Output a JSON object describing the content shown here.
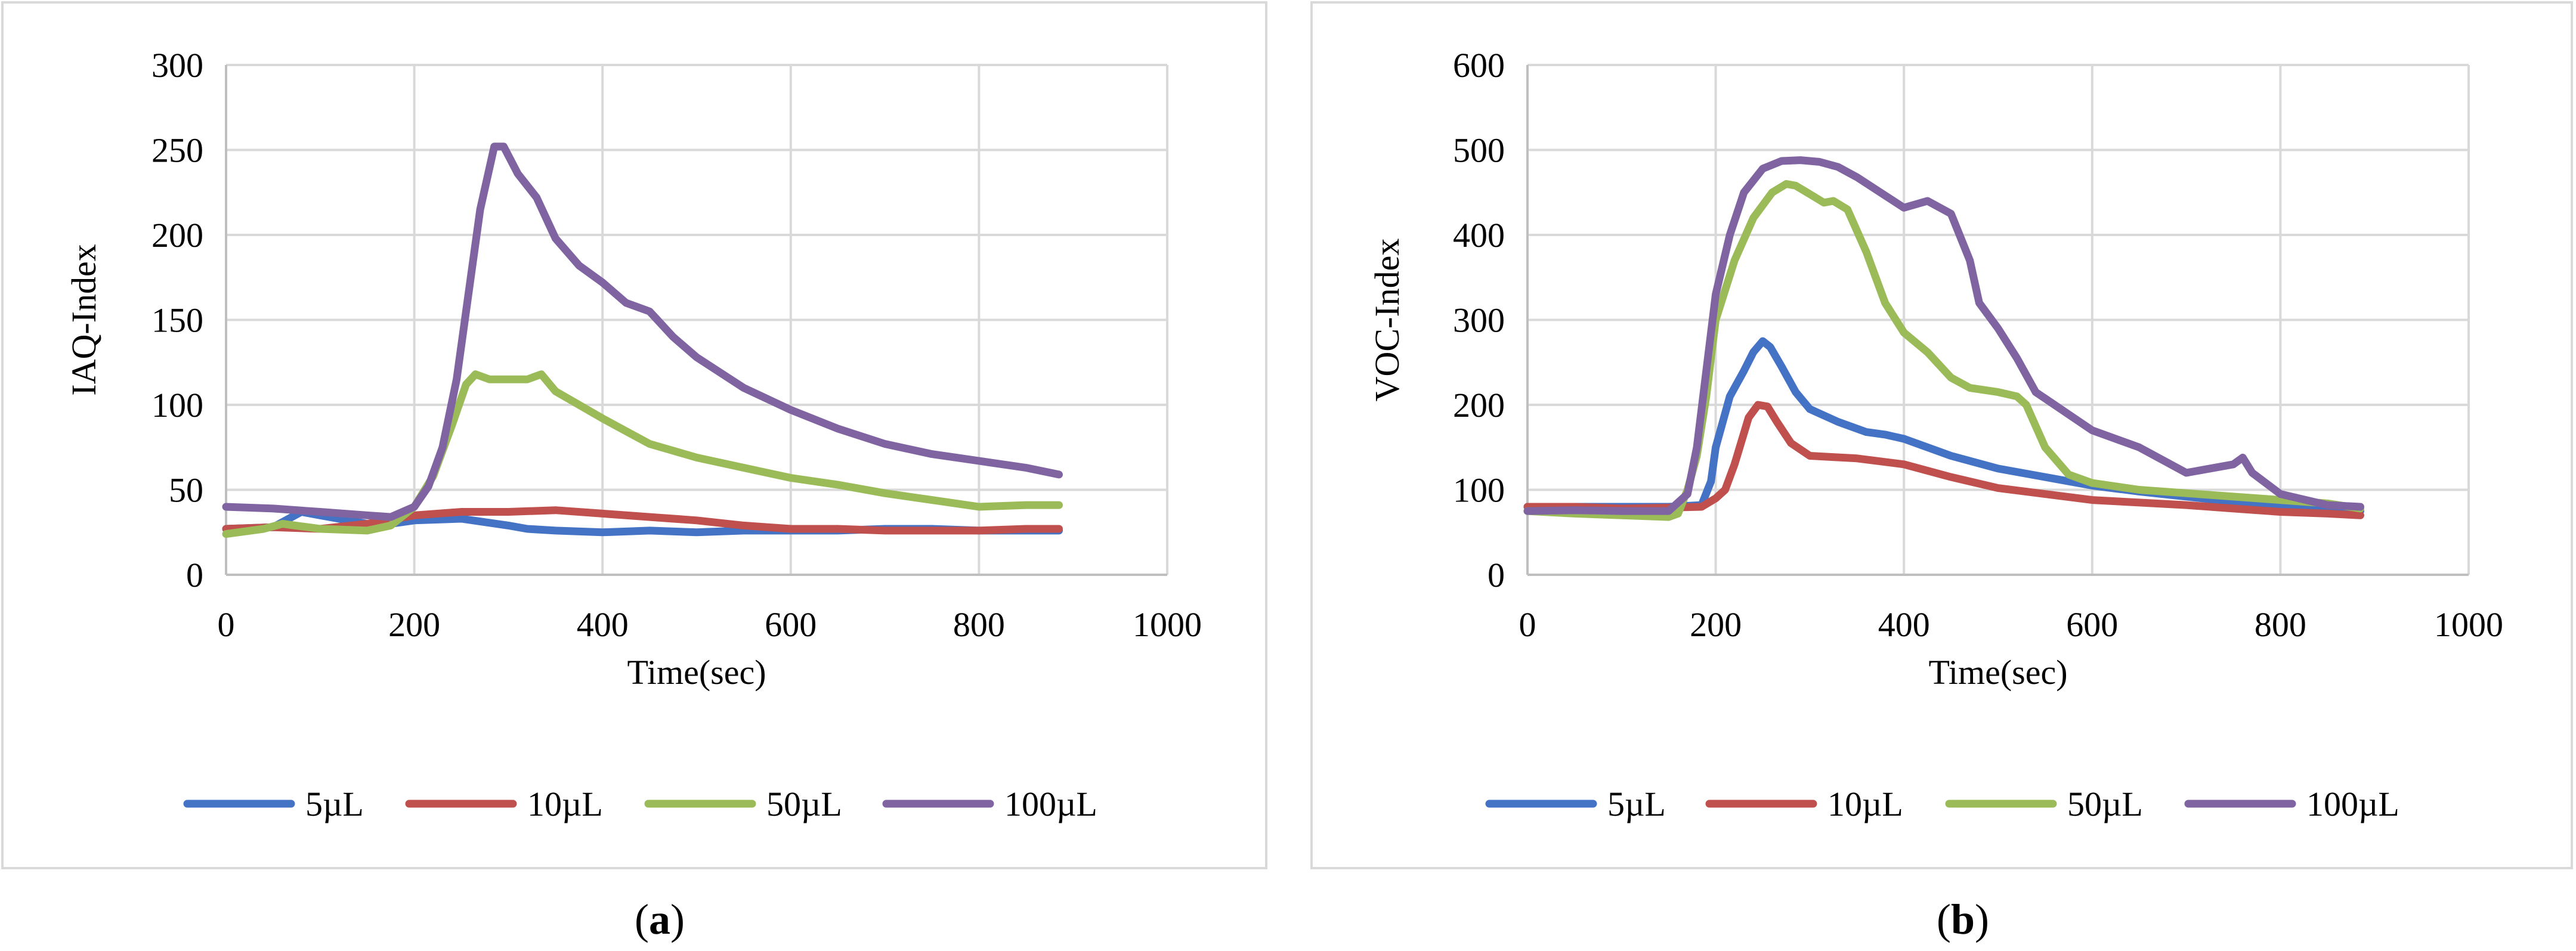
{
  "colors": {
    "series": [
      "#4472C4",
      "#C0504D",
      "#9BBB59",
      "#8064A2"
    ],
    "grid": "#D9D9D9",
    "axis": "#BFBFBF",
    "frame": "#D9D9D9",
    "text": "#000000"
  },
  "chart_data": [
    {
      "type": "line",
      "panel_label": "(a)",
      "panel_letter": "a",
      "title": "",
      "xlabel": "Time(sec)",
      "ylabel": "IAQ-Index",
      "xlim": [
        0,
        1000
      ],
      "ylim": [
        0,
        300
      ],
      "xticks": [
        0,
        200,
        400,
        600,
        800,
        1000
      ],
      "yticks": [
        0,
        50,
        100,
        150,
        200,
        250,
        300
      ],
      "grid": true,
      "legend_position": "bottom",
      "series": [
        {
          "name": "5µL",
          "x": [
            0,
            50,
            80,
            100,
            150,
            175,
            200,
            250,
            300,
            320,
            350,
            400,
            450,
            500,
            550,
            600,
            650,
            700,
            750,
            800,
            850,
            885
          ],
          "y": [
            27,
            28,
            37,
            35,
            30,
            30,
            32,
            33,
            29,
            27,
            26,
            25,
            26,
            25,
            26,
            26,
            26,
            27,
            27,
            26,
            26,
            26
          ]
        },
        {
          "name": "10µL",
          "x": [
            0,
            50,
            100,
            150,
            200,
            250,
            300,
            350,
            400,
            450,
            500,
            550,
            600,
            650,
            700,
            750,
            800,
            850,
            885
          ],
          "y": [
            27,
            28,
            27,
            30,
            35,
            37,
            37,
            38,
            36,
            34,
            32,
            29,
            27,
            27,
            26,
            26,
            26,
            27,
            27
          ]
        },
        {
          "name": "50µL",
          "x": [
            0,
            40,
            60,
            100,
            150,
            175,
            200,
            220,
            240,
            255,
            265,
            280,
            300,
            320,
            335,
            350,
            375,
            400,
            450,
            500,
            550,
            600,
            650,
            700,
            750,
            800,
            850,
            885
          ],
          "y": [
            24,
            27,
            30,
            27,
            26,
            29,
            40,
            58,
            88,
            112,
            118,
            115,
            115,
            115,
            118,
            108,
            100,
            92,
            77,
            69,
            63,
            57,
            53,
            48,
            44,
            40,
            41,
            41
          ]
        },
        {
          "name": "100µL",
          "x": [
            0,
            50,
            100,
            150,
            175,
            200,
            215,
            230,
            245,
            260,
            270,
            285,
            295,
            310,
            330,
            350,
            375,
            400,
            425,
            450,
            475,
            500,
            550,
            600,
            650,
            700,
            750,
            800,
            850,
            885
          ],
          "y": [
            40,
            39,
            37,
            35,
            34,
            40,
            52,
            75,
            115,
            175,
            215,
            252,
            252,
            236,
            222,
            198,
            182,
            172,
            160,
            155,
            140,
            128,
            110,
            97,
            86,
            77,
            71,
            67,
            63,
            59
          ]
        }
      ]
    },
    {
      "type": "line",
      "panel_label": "(b)",
      "panel_letter": "b",
      "title": "",
      "xlabel": "Time(sec)",
      "ylabel": "VOC-Index",
      "xlim": [
        0,
        1000
      ],
      "ylim": [
        0,
        600
      ],
      "xticks": [
        0,
        200,
        400,
        600,
        800,
        1000
      ],
      "yticks": [
        0,
        100,
        200,
        300,
        400,
        500,
        600
      ],
      "grid": true,
      "legend_position": "bottom",
      "series": [
        {
          "name": "5µL",
          "x": [
            0,
            100,
            150,
            185,
            195,
            200,
            215,
            230,
            240,
            250,
            258,
            270,
            285,
            300,
            330,
            360,
            380,
            400,
            450,
            500,
            550,
            600,
            650,
            700,
            750,
            800,
            850,
            885
          ],
          "y": [
            80,
            80,
            80,
            82,
            110,
            150,
            210,
            240,
            262,
            275,
            268,
            245,
            215,
            195,
            180,
            168,
            165,
            160,
            140,
            125,
            115,
            105,
            98,
            92,
            86,
            82,
            78,
            75
          ]
        },
        {
          "name": "10µL",
          "x": [
            0,
            50,
            100,
            150,
            185,
            200,
            210,
            220,
            235,
            245,
            255,
            265,
            280,
            300,
            350,
            400,
            450,
            500,
            550,
            600,
            650,
            700,
            750,
            800,
            850,
            885
          ],
          "y": [
            80,
            80,
            78,
            79,
            80,
            90,
            100,
            130,
            185,
            200,
            198,
            180,
            155,
            140,
            137,
            130,
            115,
            102,
            95,
            88,
            85,
            82,
            78,
            74,
            72,
            70
          ]
        },
        {
          "name": "50µL",
          "x": [
            0,
            50,
            100,
            150,
            160,
            170,
            180,
            190,
            200,
            220,
            240,
            260,
            275,
            285,
            300,
            315,
            325,
            340,
            360,
            380,
            400,
            425,
            450,
            470,
            500,
            520,
            530,
            550,
            575,
            600,
            650,
            700,
            750,
            800,
            850,
            885
          ],
          "y": [
            75,
            72,
            70,
            68,
            72,
            100,
            140,
            210,
            300,
            370,
            420,
            450,
            460,
            458,
            448,
            438,
            440,
            430,
            380,
            320,
            285,
            262,
            232,
            220,
            215,
            210,
            200,
            150,
            118,
            108,
            100,
            96,
            92,
            88,
            84,
            78
          ]
        },
        {
          "name": "100µL",
          "x": [
            0,
            50,
            100,
            150,
            170,
            180,
            190,
            200,
            215,
            230,
            250,
            270,
            290,
            310,
            330,
            350,
            375,
            400,
            425,
            450,
            470,
            480,
            500,
            520,
            540,
            560,
            580,
            600,
            650,
            700,
            750,
            760,
            770,
            800,
            850,
            885
          ],
          "y": [
            75,
            76,
            75,
            75,
            95,
            150,
            240,
            330,
            400,
            450,
            478,
            487,
            488,
            486,
            480,
            468,
            450,
            432,
            440,
            425,
            370,
            320,
            290,
            255,
            215,
            200,
            185,
            170,
            150,
            120,
            130,
            138,
            120,
            95,
            82,
            80
          ]
        }
      ]
    }
  ]
}
